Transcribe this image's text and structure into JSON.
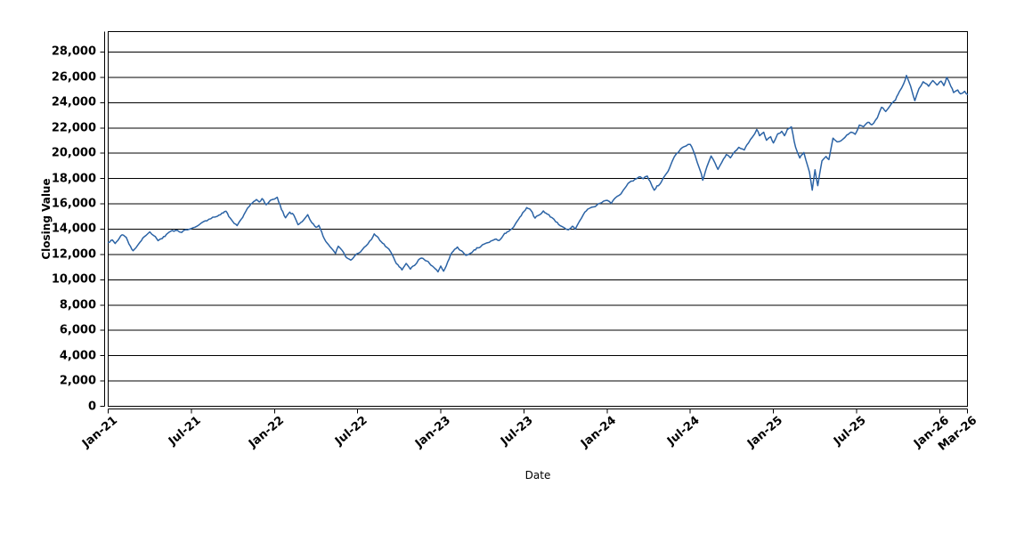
{
  "chart_data": {
    "type": "line",
    "title": "",
    "xlabel": "Date",
    "ylabel": "Closing Value",
    "legend": "none",
    "grid": "horizontal",
    "background": "#ffffff",
    "line_color": "#2b63a5",
    "axis_color": "#000000",
    "y_ticks": [
      0,
      2000,
      4000,
      6000,
      8000,
      10000,
      12000,
      14000,
      16000,
      18000,
      20000,
      22000,
      24000,
      26000,
      28000
    ],
    "ylim": [
      0,
      29618
    ],
    "x_tick_labels": [
      "Jan-21",
      "Jul-21",
      "Jan-22",
      "Jul-22",
      "Jan-23",
      "Jul-23",
      "Jan-24",
      "Jul-24",
      "Jan-25",
      "Jul-25",
      "Jan-26",
      "Mar-26"
    ],
    "x_tick_months": [
      0,
      6,
      12,
      18,
      24,
      30,
      36,
      42,
      48,
      54,
      60,
      62
    ],
    "xlim_months": [
      0,
      62
    ],
    "x_unit": "months since Jan-2021",
    "render_noise_amplitude": 130,
    "series": [
      {
        "name": "Closing Value",
        "points": [
          [
            0,
            12950
          ],
          [
            0.3,
            13150
          ],
          [
            0.5,
            12870
          ],
          [
            0.8,
            13280
          ],
          [
            1.0,
            13560
          ],
          [
            1.3,
            13360
          ],
          [
            1.5,
            12830
          ],
          [
            1.8,
            12300
          ],
          [
            2.0,
            12520
          ],
          [
            2.3,
            12980
          ],
          [
            2.6,
            13400
          ],
          [
            3.0,
            13790
          ],
          [
            3.3,
            13480
          ],
          [
            3.6,
            13090
          ],
          [
            3.9,
            13260
          ],
          [
            4.2,
            13590
          ],
          [
            4.5,
            13830
          ],
          [
            5.0,
            13900
          ],
          [
            5.3,
            13740
          ],
          [
            5.6,
            13960
          ],
          [
            6.0,
            14050
          ],
          [
            6.4,
            14230
          ],
          [
            6.7,
            14470
          ],
          [
            7.0,
            14660
          ],
          [
            7.4,
            14820
          ],
          [
            7.7,
            14960
          ],
          [
            8.0,
            15120
          ],
          [
            8.3,
            15280
          ],
          [
            8.5,
            15420
          ],
          [
            8.8,
            14880
          ],
          [
            9.1,
            14440
          ],
          [
            9.3,
            14280
          ],
          [
            9.6,
            14790
          ],
          [
            9.9,
            15350
          ],
          [
            10.2,
            15830
          ],
          [
            10.5,
            16190
          ],
          [
            10.7,
            16340
          ],
          [
            10.9,
            16150
          ],
          [
            11.1,
            16420
          ],
          [
            11.4,
            15930
          ],
          [
            11.7,
            16280
          ],
          [
            12.0,
            16380
          ],
          [
            12.2,
            16520
          ],
          [
            12.5,
            15550
          ],
          [
            12.8,
            14900
          ],
          [
            13.1,
            15350
          ],
          [
            13.4,
            15100
          ],
          [
            13.7,
            14350
          ],
          [
            14.0,
            14600
          ],
          [
            14.4,
            15150
          ],
          [
            14.7,
            14500
          ],
          [
            15.0,
            14150
          ],
          [
            15.2,
            14300
          ],
          [
            15.5,
            13450
          ],
          [
            15.8,
            12900
          ],
          [
            16.1,
            12500
          ],
          [
            16.4,
            12080
          ],
          [
            16.6,
            12650
          ],
          [
            16.9,
            12300
          ],
          [
            17.2,
            11750
          ],
          [
            17.5,
            11550
          ],
          [
            17.8,
            11900
          ],
          [
            18.2,
            12190
          ],
          [
            18.6,
            12680
          ],
          [
            19.0,
            13190
          ],
          [
            19.2,
            13630
          ],
          [
            19.5,
            13310
          ],
          [
            19.8,
            12890
          ],
          [
            20.1,
            12570
          ],
          [
            20.4,
            12180
          ],
          [
            20.7,
            11480
          ],
          [
            21.0,
            11020
          ],
          [
            21.2,
            10780
          ],
          [
            21.5,
            11290
          ],
          [
            21.8,
            10840
          ],
          [
            22.1,
            11130
          ],
          [
            22.4,
            11590
          ],
          [
            22.7,
            11700
          ],
          [
            23.0,
            11480
          ],
          [
            23.3,
            11140
          ],
          [
            23.6,
            10870
          ],
          [
            23.8,
            10620
          ],
          [
            24.0,
            11090
          ],
          [
            24.2,
            10680
          ],
          [
            24.5,
            11420
          ],
          [
            24.8,
            12140
          ],
          [
            25.0,
            12410
          ],
          [
            25.2,
            12590
          ],
          [
            25.5,
            12290
          ],
          [
            25.8,
            11930
          ],
          [
            26.1,
            12070
          ],
          [
            26.4,
            12360
          ],
          [
            26.7,
            12520
          ],
          [
            27.0,
            12760
          ],
          [
            27.3,
            12910
          ],
          [
            27.6,
            13060
          ],
          [
            27.9,
            13200
          ],
          [
            28.2,
            13100
          ],
          [
            28.5,
            13500
          ],
          [
            28.8,
            13800
          ],
          [
            29.1,
            14000
          ],
          [
            29.4,
            14450
          ],
          [
            29.7,
            14950
          ],
          [
            30.0,
            15400
          ],
          [
            30.2,
            15700
          ],
          [
            30.5,
            15490
          ],
          [
            30.8,
            14870
          ],
          [
            31.1,
            15120
          ],
          [
            31.4,
            15440
          ],
          [
            31.7,
            15180
          ],
          [
            32.0,
            14930
          ],
          [
            32.3,
            14580
          ],
          [
            32.6,
            14290
          ],
          [
            32.9,
            14120
          ],
          [
            33.2,
            13950
          ],
          [
            33.5,
            14240
          ],
          [
            33.7,
            13990
          ],
          [
            34.0,
            14620
          ],
          [
            34.3,
            15190
          ],
          [
            34.6,
            15580
          ],
          [
            35.0,
            15760
          ],
          [
            35.3,
            15940
          ],
          [
            35.6,
            16090
          ],
          [
            36.0,
            16280
          ],
          [
            36.3,
            16040
          ],
          [
            36.6,
            16480
          ],
          [
            37.0,
            16790
          ],
          [
            37.3,
            17280
          ],
          [
            37.6,
            17690
          ],
          [
            38.0,
            17940
          ],
          [
            38.3,
            18130
          ],
          [
            38.6,
            17990
          ],
          [
            38.9,
            18190
          ],
          [
            39.1,
            17780
          ],
          [
            39.4,
            17080
          ],
          [
            39.6,
            17430
          ],
          [
            39.8,
            17550
          ],
          [
            40.1,
            18120
          ],
          [
            40.4,
            18580
          ],
          [
            40.7,
            19380
          ],
          [
            41.0,
            19960
          ],
          [
            41.3,
            20330
          ],
          [
            41.7,
            20580
          ],
          [
            42.0,
            20700
          ],
          [
            42.2,
            20260
          ],
          [
            42.5,
            19280
          ],
          [
            42.8,
            18360
          ],
          [
            42.9,
            17870
          ],
          [
            43.2,
            18940
          ],
          [
            43.5,
            19780
          ],
          [
            43.8,
            19200
          ],
          [
            44.0,
            18730
          ],
          [
            44.4,
            19560
          ],
          [
            44.6,
            19900
          ],
          [
            44.9,
            19640
          ],
          [
            45.2,
            20120
          ],
          [
            45.5,
            20470
          ],
          [
            45.9,
            20260
          ],
          [
            46.2,
            20820
          ],
          [
            46.5,
            21310
          ],
          [
            46.8,
            21880
          ],
          [
            47.0,
            21390
          ],
          [
            47.3,
            21660
          ],
          [
            47.5,
            21030
          ],
          [
            47.8,
            21310
          ],
          [
            48.0,
            20820
          ],
          [
            48.3,
            21530
          ],
          [
            48.6,
            21740
          ],
          [
            48.8,
            21390
          ],
          [
            49.0,
            21880
          ],
          [
            49.3,
            22090
          ],
          [
            49.6,
            20470
          ],
          [
            49.9,
            19630
          ],
          [
            50.2,
            20060
          ],
          [
            50.6,
            18500
          ],
          [
            50.8,
            17090
          ],
          [
            51.0,
            18700
          ],
          [
            51.2,
            17440
          ],
          [
            51.5,
            19400
          ],
          [
            51.8,
            19750
          ],
          [
            52.0,
            19500
          ],
          [
            52.3,
            21200
          ],
          [
            52.6,
            20900
          ],
          [
            53.0,
            21100
          ],
          [
            53.3,
            21450
          ],
          [
            53.6,
            21670
          ],
          [
            53.9,
            21500
          ],
          [
            54.2,
            22230
          ],
          [
            54.5,
            22100
          ],
          [
            54.8,
            22440
          ],
          [
            55.1,
            22250
          ],
          [
            55.5,
            22800
          ],
          [
            55.8,
            23640
          ],
          [
            56.1,
            23300
          ],
          [
            56.5,
            23900
          ],
          [
            56.8,
            24200
          ],
          [
            57.1,
            24900
          ],
          [
            57.4,
            25500
          ],
          [
            57.6,
            26150
          ],
          [
            57.9,
            25300
          ],
          [
            58.2,
            24150
          ],
          [
            58.5,
            25100
          ],
          [
            58.8,
            25650
          ],
          [
            59.2,
            25300
          ],
          [
            59.5,
            25750
          ],
          [
            59.8,
            25400
          ],
          [
            60.1,
            25700
          ],
          [
            60.3,
            25350
          ],
          [
            60.5,
            26000
          ],
          [
            60.8,
            25300
          ],
          [
            61.0,
            24800
          ],
          [
            61.3,
            25000
          ],
          [
            61.5,
            24700
          ],
          [
            61.8,
            24900
          ],
          [
            62.0,
            24650
          ]
        ]
      }
    ]
  }
}
